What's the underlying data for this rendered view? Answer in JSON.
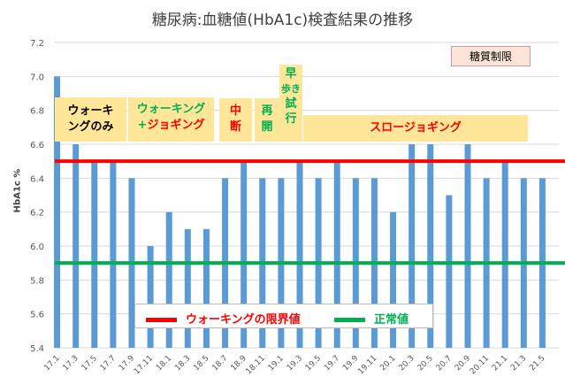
{
  "chart_data": {
    "type": "bar",
    "title": "糖尿病:血糖値(HbA1c)検査結果の推移",
    "ylabel": "HbA1c %",
    "xlabel": "",
    "ylim": [
      5.4,
      7.2
    ],
    "yticks": [
      "5.4",
      "5.6",
      "5.8",
      "6.0",
      "6.2",
      "6.4",
      "6.6",
      "6.8",
      "7.0",
      "7.2"
    ],
    "grid": true,
    "categories": [
      "17.1",
      "17.3",
      "17.5",
      "17.7",
      "17.9",
      "17.11",
      "18.1",
      "18.3",
      "18.5",
      "18.7",
      "18.9",
      "18.11",
      "19.1",
      "19.3",
      "19.5",
      "19.7",
      "19.9",
      "19.11",
      "20.1",
      "20.3",
      "20.5",
      "20.7",
      "20.9",
      "20.11",
      "21.1",
      "21.3",
      "21.5"
    ],
    "values": [
      7.0,
      6.6,
      6.5,
      6.5,
      6.4,
      6.0,
      6.2,
      6.1,
      6.1,
      6.4,
      6.5,
      6.4,
      6.4,
      6.5,
      6.4,
      6.5,
      6.4,
      6.4,
      6.2,
      6.6,
      6.6,
      6.3,
      6.6,
      6.4,
      6.5,
      6.4,
      6.4
    ],
    "bar_color": "#5B9BD5",
    "reference_lines": [
      {
        "name": "ウォーキングの限界値",
        "value": 6.5,
        "color": "#FF0000"
      },
      {
        "name": "正常値",
        "value": 5.9,
        "color": "#00B050"
      }
    ],
    "legend_position": "bottom-center"
  },
  "annotations": {
    "a1": [
      "ウォーキ",
      "ングのみ"
    ],
    "a2_line1": "ウォーキング",
    "a2_plus": "+",
    "a2_line2": "ジョギング",
    "a3": [
      "中",
      "断"
    ],
    "a4": [
      "再",
      "開"
    ],
    "a5": [
      "早",
      "歩き",
      "試",
      "行"
    ],
    "a6": "スロージョギング",
    "note": "糖質制限"
  }
}
